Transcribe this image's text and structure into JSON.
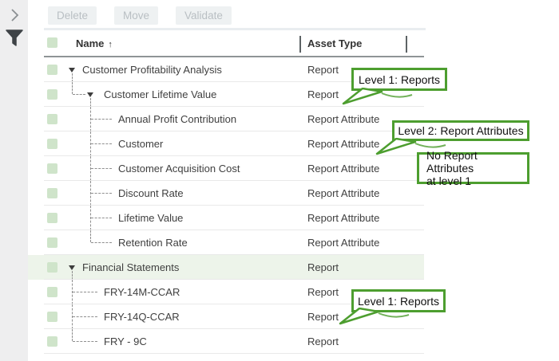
{
  "panel": {
    "icons": [
      {
        "name": "chevron-right-icon",
        "meaning": "expand panel"
      },
      {
        "name": "filter-funnel-icon",
        "meaning": "filter"
      }
    ]
  },
  "toolbar": {
    "buttons": [
      {
        "label": "Delete",
        "enabled": false
      },
      {
        "label": "Move",
        "enabled": false
      },
      {
        "label": "Validate",
        "enabled": false
      }
    ]
  },
  "table": {
    "columns": [
      {
        "label": "Name",
        "sorted": "asc",
        "sort_icon": "↑"
      },
      {
        "label": "Asset Type"
      }
    ],
    "rows": [
      {
        "name": "Customer Profitability Analysis",
        "type": "Report",
        "level": 0,
        "expanded": true,
        "checked": false,
        "highlight": false
      },
      {
        "name": "Customer Lifetime Value",
        "type": "Report",
        "level": 1,
        "expanded": true,
        "checked": false,
        "highlight": false
      },
      {
        "name": "Annual Profit Contribution",
        "type": "Report Attribute",
        "level": 2,
        "expanded": false,
        "checked": false,
        "highlight": false
      },
      {
        "name": "Customer",
        "type": "Report Attribute",
        "level": 2,
        "expanded": false,
        "checked": false,
        "highlight": false
      },
      {
        "name": "Customer Acquisition Cost",
        "type": "Report Attribute",
        "level": 2,
        "expanded": false,
        "checked": false,
        "highlight": false
      },
      {
        "name": "Discount Rate",
        "type": "Report Attribute",
        "level": 2,
        "expanded": false,
        "checked": false,
        "highlight": false
      },
      {
        "name": "Lifetime Value",
        "type": "Report Attribute",
        "level": 2,
        "expanded": false,
        "checked": false,
        "highlight": false
      },
      {
        "name": "Retention Rate",
        "type": "Report Attribute",
        "level": 2,
        "expanded": false,
        "checked": false,
        "highlight": false
      },
      {
        "name": "Financial Statements",
        "type": "Report",
        "level": 0,
        "expanded": true,
        "checked": false,
        "highlight": true
      },
      {
        "name": "FRY-14M-CCAR",
        "type": "Report",
        "level": 1,
        "expanded": false,
        "checked": false,
        "highlight": false
      },
      {
        "name": "FRY-14Q-CCAR",
        "type": "Report",
        "level": 1,
        "expanded": false,
        "checked": false,
        "highlight": false
      },
      {
        "name": "FRY - 9C",
        "type": "Report",
        "level": 1,
        "expanded": false,
        "checked": false,
        "highlight": false
      }
    ]
  },
  "callouts": [
    {
      "text": "Level 1: Reports",
      "tail": true
    },
    {
      "text": "Level 2: Report Attributes",
      "tail": true
    },
    {
      "text": "No Report Attributes\nat level 1",
      "tail": false
    },
    {
      "text": "Level 1: Reports",
      "tail": true
    }
  ],
  "colors": {
    "callout_green": "#4d9e2f",
    "checkbox_green": "#cfe4ca",
    "highlight_row_green": "#edf4ea",
    "sidebar_gray": "#eeeeef",
    "disabled_button_bg": "#eef1f2",
    "disabled_button_text": "#b9bfc3"
  }
}
